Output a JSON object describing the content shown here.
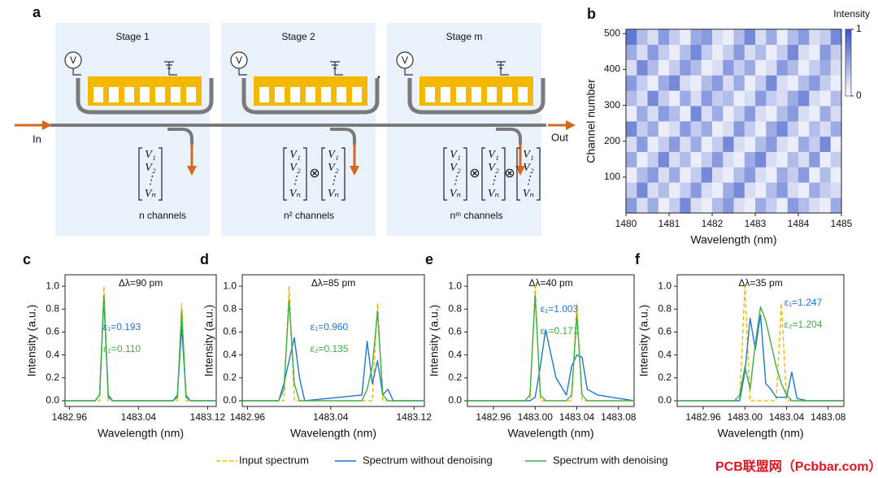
{
  "diagram": {
    "panel": "a",
    "stages": [
      {
        "title": "Stage 1",
        "channels": "n channels"
      },
      {
        "title": "Stage 2",
        "channels": "n² channels"
      },
      {
        "title": "Stage m",
        "channels": "nᵐ channels"
      }
    ],
    "volt": "V",
    "vector": [
      "V₁",
      "V₂",
      "⋮",
      "Vₙ"
    ],
    "otimes": "⊗",
    "ellipsis": "···",
    "input": "In",
    "output": "Out"
  },
  "chart_data": [
    {
      "type": "heatmap",
      "panel": "b",
      "xlabel": "Wavelength (nm)",
      "ylabel": "Channel number",
      "xlim": [
        1480,
        1485
      ],
      "xticks": [
        1480,
        1481,
        1482,
        1483,
        1484,
        1485
      ],
      "ylim": [
        0,
        512
      ],
      "yticks": [
        100,
        200,
        300,
        400,
        500
      ],
      "colorbar": {
        "label": "Intensity",
        "lim": [
          0,
          1
        ],
        "ticks": [
          0,
          1
        ],
        "colors": [
          "#ffffff",
          "#3b57c9"
        ]
      },
      "z": [
        [
          0.6,
          0.2,
          0.5,
          0.1,
          0.3,
          0.7,
          0.2,
          0.1,
          0.4,
          0.6,
          0.2,
          0.1,
          0.5,
          0.3,
          0.1,
          0.6,
          0.4,
          0.2,
          0.1,
          0.5
        ],
        [
          0.3,
          0.7,
          0.2,
          0.4,
          0.1,
          0.3,
          0.6,
          0.2,
          0.1,
          0.5,
          0.7,
          0.2,
          0.1,
          0.4,
          0.6,
          0.2,
          0.1,
          0.5,
          0.3,
          0.2
        ],
        [
          0.1,
          0.4,
          0.6,
          0.2,
          0.5,
          0.1,
          0.3,
          0.7,
          0.2,
          0.1,
          0.4,
          0.6,
          0.2,
          0.1,
          0.5,
          0.3,
          0.6,
          0.1,
          0.4,
          0.1
        ],
        [
          0.5,
          0.1,
          0.3,
          0.7,
          0.2,
          0.4,
          0.1,
          0.3,
          0.6,
          0.2,
          0.1,
          0.5,
          0.7,
          0.2,
          0.1,
          0.4,
          0.2,
          0.6,
          0.1,
          0.3
        ],
        [
          0.2,
          0.6,
          0.1,
          0.3,
          0.6,
          0.2,
          0.5,
          0.1,
          0.3,
          0.7,
          0.2,
          0.1,
          0.4,
          0.6,
          0.2,
          0.1,
          0.5,
          0.3,
          0.7,
          0.1
        ],
        [
          0.7,
          0.3,
          0.5,
          0.1,
          0.2,
          0.6,
          0.3,
          0.5,
          0.1,
          0.2,
          0.6,
          0.3,
          0.1,
          0.5,
          0.7,
          0.3,
          0.1,
          0.4,
          0.2,
          0.5
        ],
        [
          0.1,
          0.5,
          0.2,
          0.6,
          0.4,
          0.1,
          0.7,
          0.2,
          0.5,
          0.1,
          0.3,
          0.6,
          0.2,
          0.1,
          0.4,
          0.6,
          0.2,
          0.1,
          0.5,
          0.2
        ],
        [
          0.4,
          0.2,
          0.7,
          0.3,
          0.1,
          0.5,
          0.2,
          0.6,
          0.3,
          0.4,
          0.1,
          0.2,
          0.6,
          0.3,
          0.2,
          0.5,
          0.7,
          0.2,
          0.1,
          0.4
        ],
        [
          0.6,
          0.3,
          0.1,
          0.5,
          0.7,
          0.2,
          0.1,
          0.4,
          0.6,
          0.2,
          0.5,
          0.1,
          0.3,
          0.7,
          0.2,
          0.1,
          0.4,
          0.6,
          0.3,
          0.1
        ],
        [
          0.2,
          0.7,
          0.4,
          0.1,
          0.3,
          0.6,
          0.4,
          0.1,
          0.2,
          0.6,
          0.3,
          0.5,
          0.1,
          0.2,
          0.6,
          0.4,
          0.1,
          0.3,
          0.5,
          0.2
        ],
        [
          0.5,
          0.2,
          0.6,
          0.3,
          0.1,
          0.4,
          0.7,
          0.3,
          0.1,
          0.3,
          0.6,
          0.2,
          0.4,
          0.1,
          0.3,
          0.7,
          0.2,
          0.1,
          0.6,
          0.3
        ],
        [
          0.8,
          0.4,
          0.2,
          0.6,
          0.3,
          0.1,
          0.5,
          0.6,
          0.2,
          0.1,
          0.4,
          0.7,
          0.2,
          0.5,
          0.1,
          0.4,
          0.6,
          0.2,
          0.3,
          0.7
        ]
      ]
    },
    {
      "type": "line",
      "panel": "c",
      "title": "Δλ=90 pm",
      "xlabel": "Wavelength (nm)",
      "ylabel": "Intensity (a.u.)",
      "xlim": [
        1482.955,
        1483.13
      ],
      "xticks": [
        1482.96,
        1483.04,
        1483.12
      ],
      "ylim": [
        -0.05,
        1.1
      ],
      "yticks": [
        {
          "value": 0,
          "label": "0.0"
        },
        0.2,
        0.4,
        0.6,
        0.8,
        {
          "value": 1,
          "label": "1.0"
        }
      ],
      "annotations": [
        {
          "text": "ε₁=0.193",
          "color": "#1f77d4"
        },
        {
          "text": "ε₂=0.110",
          "color": "#3cb043"
        }
      ],
      "x": [
        1482.955,
        1482.99,
        1482.995,
        1483.0,
        1483.005,
        1483.01,
        1483.08,
        1483.085,
        1483.09,
        1483.095,
        1483.1,
        1483.13
      ],
      "series": [
        {
          "name": "Input spectrum",
          "color": "#f5b800",
          "dashed": true,
          "values": [
            0,
            0,
            0,
            1.0,
            0,
            0,
            0,
            0,
            0.85,
            0,
            0,
            0
          ]
        },
        {
          "name": "Spectrum without denoising",
          "color": "#1f77d4",
          "values": [
            0,
            0,
            0.05,
            0.9,
            0.05,
            0,
            0,
            0.05,
            0.65,
            0.05,
            0,
            0
          ]
        },
        {
          "name": "Spectrum with denoising",
          "color": "#3cb043",
          "values": [
            0,
            0,
            0.05,
            0.92,
            0.03,
            0,
            0,
            0.03,
            0.78,
            0.03,
            0,
            0
          ]
        }
      ]
    },
    {
      "type": "line",
      "panel": "d",
      "title": "Δλ=85 pm",
      "xlabel": "Wavelength (nm)",
      "ylabel": "Intensity (a.u.)",
      "xlim": [
        1482.955,
        1483.13
      ],
      "xticks": [
        1482.96,
        1483.04,
        1483.12
      ],
      "ylim": [
        -0.05,
        1.1
      ],
      "yticks": [
        {
          "value": 0,
          "label": "0.0"
        },
        0.2,
        0.4,
        0.6,
        0.8,
        {
          "value": 1,
          "label": "1.0"
        }
      ],
      "annotations": [
        {
          "text": "ε₁=0.960",
          "color": "#1f77d4"
        },
        {
          "text": "ε₂=0.135",
          "color": "#3cb043"
        }
      ],
      "x": [
        1482.955,
        1482.99,
        1482.995,
        1483.0,
        1483.005,
        1483.01,
        1483.015,
        1483.07,
        1483.075,
        1483.08,
        1483.085,
        1483.09,
        1483.095,
        1483.1,
        1483.13
      ],
      "series": [
        {
          "name": "Input spectrum",
          "color": "#f5b800",
          "dashed": true,
          "values": [
            0,
            0,
            0,
            1.0,
            0,
            0,
            0,
            0,
            0,
            0,
            0.85,
            0,
            0,
            0,
            0
          ]
        },
        {
          "name": "Spectrum without denoising",
          "color": "#1f77d4",
          "values": [
            0,
            0,
            0.15,
            0.35,
            0.55,
            0.2,
            0,
            0.05,
            0.52,
            0.15,
            0.35,
            0.05,
            0.1,
            0,
            0
          ]
        },
        {
          "name": "Spectrum with denoising",
          "color": "#3cb043",
          "values": [
            0,
            0,
            0.1,
            0.88,
            0.15,
            0,
            0,
            0,
            0.1,
            0.3,
            0.78,
            0.05,
            0,
            0,
            0
          ]
        }
      ]
    },
    {
      "type": "line",
      "panel": "e",
      "title": "Δλ=40 pm",
      "xlabel": "Wavelength (nm)",
      "ylabel": "Intensity (a.u.)",
      "xlim": [
        1482.935,
        1483.095
      ],
      "xticks": [
        1482.96,
        {
          "value": 1483,
          "label": "1483.00"
        },
        1483.04,
        1483.08
      ],
      "ylim": [
        -0.05,
        1.1
      ],
      "yticks": [
        {
          "value": 0,
          "label": "0.0"
        },
        0.2,
        0.4,
        0.6,
        0.8,
        {
          "value": 1,
          "label": "1.0"
        }
      ],
      "annotations": [
        {
          "text": "ε₁=1.003",
          "color": "#1f77d4"
        },
        {
          "text": "ε₂=0.171",
          "color": "#3cb043"
        }
      ],
      "x": [
        1482.935,
        1482.99,
        1482.995,
        1483.0,
        1483.005,
        1483.01,
        1483.02,
        1483.03,
        1483.035,
        1483.04,
        1483.045,
        1483.05,
        1483.06,
        1483.095
      ],
      "series": [
        {
          "name": "Input spectrum",
          "color": "#f5b800",
          "dashed": true,
          "values": [
            0,
            0,
            0,
            1.0,
            0,
            0,
            0,
            0,
            0,
            0.85,
            0,
            0,
            0,
            0
          ]
        },
        {
          "name": "Spectrum without denoising",
          "color": "#1f77d4",
          "values": [
            0,
            0,
            0,
            0.03,
            0.3,
            0.62,
            0.2,
            0.05,
            0.3,
            0.4,
            0.38,
            0.1,
            0.05,
            0
          ]
        },
        {
          "name": "Spectrum with denoising",
          "color": "#3cb043",
          "values": [
            0,
            0,
            0.05,
            0.92,
            0.05,
            0,
            0,
            0,
            0.05,
            0.75,
            0.05,
            0,
            0,
            0
          ]
        }
      ]
    },
    {
      "type": "line",
      "panel": "f",
      "title": "Δλ=35 pm",
      "xlabel": "Wavelength (nm)",
      "ylabel": "Intensity (a.u.)",
      "xlim": [
        1482.935,
        1483.095
      ],
      "xticks": [
        1482.96,
        {
          "value": 1483,
          "label": "1483.00"
        },
        1483.04,
        1483.08
      ],
      "ylim": [
        -0.05,
        1.1
      ],
      "yticks": [
        {
          "value": 0,
          "label": "0.0"
        },
        0.2,
        0.4,
        0.6,
        0.8,
        {
          "value": 1,
          "label": "1.0"
        }
      ],
      "annotations": [
        {
          "text": "ε₁=1.247",
          "color": "#1f77d4"
        },
        {
          "text": "ε₂=1.204",
          "color": "#3cb043"
        }
      ],
      "x": [
        1482.935,
        1482.99,
        1482.995,
        1483.0,
        1483.005,
        1483.01,
        1483.015,
        1483.02,
        1483.025,
        1483.03,
        1483.035,
        1483.04,
        1483.045,
        1483.05,
        1483.06,
        1483.095
      ],
      "series": [
        {
          "name": "Input spectrum",
          "color": "#f5b800",
          "dashed": true,
          "values": [
            0,
            0,
            0,
            1.0,
            0,
            0,
            0,
            0,
            0,
            0,
            0.85,
            0,
            0,
            0,
            0,
            0
          ]
        },
        {
          "name": "Spectrum without denoising",
          "color": "#1f77d4",
          "values": [
            0,
            0,
            0,
            0.25,
            0.72,
            0.45,
            0.75,
            0.15,
            0.1,
            0.03,
            0.03,
            0.03,
            0.25,
            0.02,
            0,
            0
          ]
        },
        {
          "name": "Spectrum with denoising",
          "color": "#3cb043",
          "values": [
            0,
            0,
            0.05,
            0.3,
            0.1,
            0.5,
            0.82,
            0.7,
            0.5,
            0.3,
            0.15,
            0.05,
            0,
            0,
            0,
            0
          ]
        }
      ]
    }
  ],
  "watermark": "PCB联盟网（Pcbbar.com）"
}
